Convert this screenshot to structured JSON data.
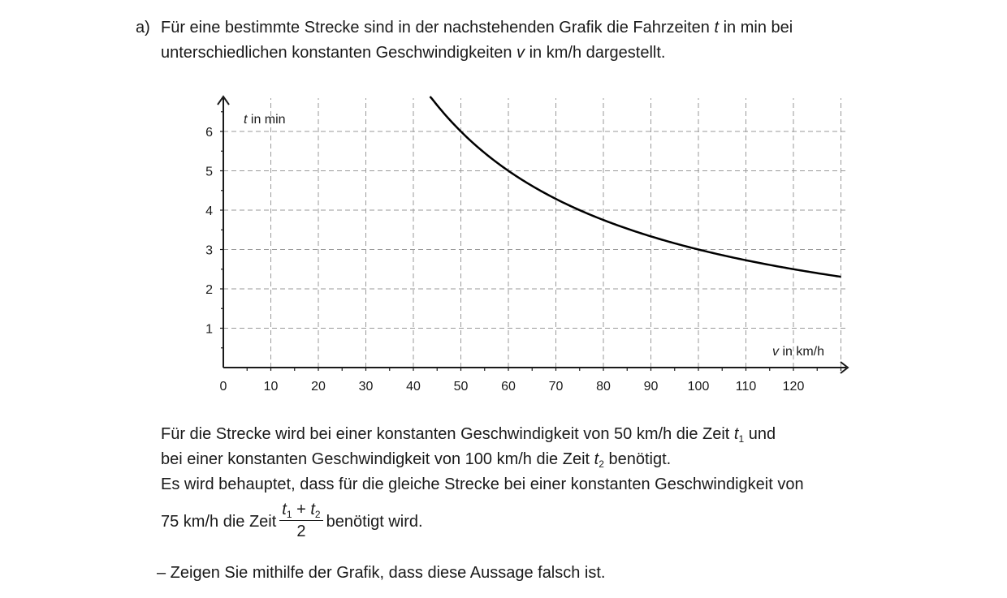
{
  "intro": {
    "label": "a)",
    "line1_a": "Für eine bestimmte Strecke sind in der nachstehenden Grafik die Fahrzeiten ",
    "line1_var": "t",
    "line1_b": " in min bei",
    "line2_a": "unterschiedlichen konstanten Geschwindigkeiten ",
    "line2_var": "v",
    "line2_b": " in km/h dargestellt."
  },
  "chart_data": {
    "type": "line",
    "xlabel_var": "v",
    "xlabel_unit": " in km/h",
    "ylabel_var": "t",
    "ylabel_unit": " in min",
    "xlim": [
      0,
      132
    ],
    "ylim": [
      0,
      6.8
    ],
    "x_ticks": [
      0,
      10,
      20,
      30,
      40,
      50,
      60,
      70,
      80,
      90,
      100,
      110,
      120
    ],
    "y_ticks": [
      1,
      2,
      3,
      4,
      5,
      6
    ],
    "grid": true,
    "series": [
      {
        "x": [
          43.5,
          45,
          50,
          55,
          60,
          70,
          75,
          80,
          90,
          100,
          110,
          120,
          130
        ],
        "y": [
          6.9,
          6.67,
          6,
          5.45,
          5,
          4.29,
          4,
          3.75,
          3.33,
          3,
          2.73,
          2.5,
          2.31
        ],
        "color": "#000000"
      }
    ]
  },
  "body": {
    "l1_a": "Für die Strecke wird bei einer konstanten Geschwindigkeit von 50 km/h die Zeit ",
    "l1_var": "t",
    "l1_sub": "1",
    "l1_b": " und",
    "l2_a": "bei einer konstanten Geschwindigkeit von 100 km/h die Zeit ",
    "l2_var": "t",
    "l2_sub": "2",
    "l2_b": " benötigt.",
    "l3": "Es wird behauptet, dass für die gleiche Strecke bei einer konstanten Geschwindigkeit von",
    "l4_a": "75 km/h die Zeit",
    "frac_t1": "t",
    "frac_sub1": "1",
    "frac_plus": " + ",
    "frac_t2": "t",
    "frac_sub2": "2",
    "frac_den": "2",
    "l4_b": "benötigt wird."
  },
  "task": "– Zeigen Sie mithilfe der Grafik, dass diese Aussage falsch ist."
}
